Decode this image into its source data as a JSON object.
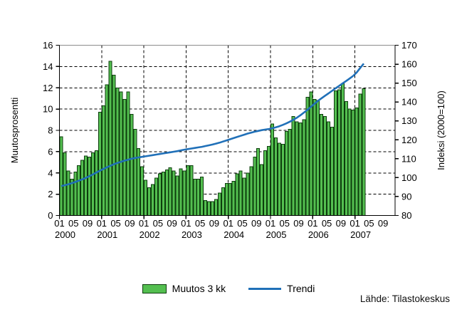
{
  "source": "Lähde: Tilastokeskus",
  "legend": {
    "items": [
      {
        "label": "Muutos 3 kk",
        "type": "bar"
      },
      {
        "label": "Trendi",
        "type": "line"
      }
    ]
  },
  "chart_data": {
    "type": "bar+line",
    "title": "",
    "left_axis": {
      "title": "Muutosprosentti",
      "min": 0,
      "max": 16,
      "tick_step": 2,
      "tick_labels": [
        "0",
        "2",
        "4",
        "6",
        "8",
        "10",
        "12",
        "14",
        "16"
      ]
    },
    "right_axis": {
      "title": "Indeksi (2000=100)",
      "min": 80,
      "max": 170,
      "tick_step": 10,
      "tick_labels": [
        "80",
        "90",
        "100",
        "110",
        "120",
        "130",
        "140",
        "150",
        "160",
        "170"
      ]
    },
    "x_axis": {
      "years": [
        "2000",
        "2001",
        "2002",
        "2003",
        "2004",
        "2005",
        "2006",
        "2007"
      ],
      "month_tick_labels": [
        "01",
        "05",
        "09"
      ]
    },
    "grid": {
      "horizontal_dashed_at": [
        2,
        4,
        6,
        8,
        10,
        12,
        14
      ],
      "vertical_dashed_at_years": [
        2001,
        2002,
        2003,
        2004,
        2005,
        2006,
        2007
      ]
    },
    "colors": {
      "bar_fill": "#54bf50",
      "bar_border": "#0d3d0d",
      "trend": "#2070b8",
      "grid": "#000000",
      "spine": "#000000",
      "top_border": "#8c8c8c",
      "text": "#000000"
    },
    "series": [
      {
        "name": "Muutos 3 kk",
        "type": "bar",
        "axis": "left",
        "values_by_year": {
          "2000": [
            7.4,
            5.9,
            4.2,
            3.4,
            4.1,
            4.7,
            5.2,
            5.6,
            5.5,
            5.9,
            6.1,
            9.7
          ],
          "2001": [
            10.3,
            12.3,
            14.5,
            13.2,
            12.0,
            11.6,
            10.9,
            11.6,
            9.5,
            8.1,
            6.3,
            4.6
          ],
          "2002": [
            3.3,
            2.6,
            2.9,
            3.5,
            3.9,
            4.1,
            4.3,
            4.5,
            4.2,
            3.7,
            4.4,
            4.2
          ],
          "2003": [
            4.7,
            4.7,
            3.4,
            3.4,
            3.6,
            1.4,
            1.3,
            1.3,
            1.5,
            2.1,
            2.6,
            3.0
          ],
          "2004": [
            3.0,
            3.2,
            3.9,
            4.2,
            3.5,
            4.0,
            4.6,
            5.5,
            6.3,
            4.8,
            6.1,
            6.5
          ],
          "2005": [
            8.6,
            7.3,
            6.8,
            6.7,
            7.9,
            8.1,
            9.3,
            8.8,
            8.7,
            9.0,
            11.1,
            11.6
          ],
          "2006": [
            10.9,
            10.8,
            9.5,
            9.3,
            8.8,
            8.3,
            11.7,
            11.8,
            12.4,
            10.7,
            10.0,
            9.9
          ],
          "2007": [
            10.1,
            11.4,
            11.9
          ]
        }
      },
      {
        "name": "Trendi",
        "type": "line",
        "axis": "right",
        "values_by_year": {
          "2000": [
            95.5,
            96.0,
            96.5,
            97.1,
            97.7,
            98.4,
            99.1,
            99.9,
            100.8,
            101.7,
            102.7,
            103.7
          ],
          "2001": [
            104.6,
            105.5,
            106.3,
            107.1,
            107.8,
            108.4,
            109.0,
            109.5,
            110.0,
            110.4,
            110.7,
            111.0
          ],
          "2002": [
            111.3,
            111.6,
            111.9,
            112.2,
            112.5,
            112.8,
            113.1,
            113.4,
            113.7,
            114.0,
            114.4,
            114.8
          ],
          "2003": [
            115.1,
            115.4,
            115.7,
            116.0,
            116.3,
            116.7,
            117.1,
            117.5,
            118.0,
            118.5,
            119.1,
            119.7
          ],
          "2004": [
            120.3,
            120.9,
            121.5,
            122.1,
            122.7,
            123.3,
            123.8,
            124.3,
            124.7,
            125.1,
            125.4,
            125.7
          ],
          "2005": [
            126.1,
            126.6,
            127.2,
            127.9,
            128.7,
            129.6,
            130.6,
            131.7,
            133.0,
            134.4,
            135.9,
            137.5
          ],
          "2006": [
            139.1,
            140.6,
            142.0,
            143.3,
            144.6,
            145.9,
            147.2,
            148.5,
            149.8,
            151.1,
            152.4,
            153.8
          ],
          "2007": [
            155.6,
            158.0,
            160.3
          ]
        }
      }
    ]
  }
}
